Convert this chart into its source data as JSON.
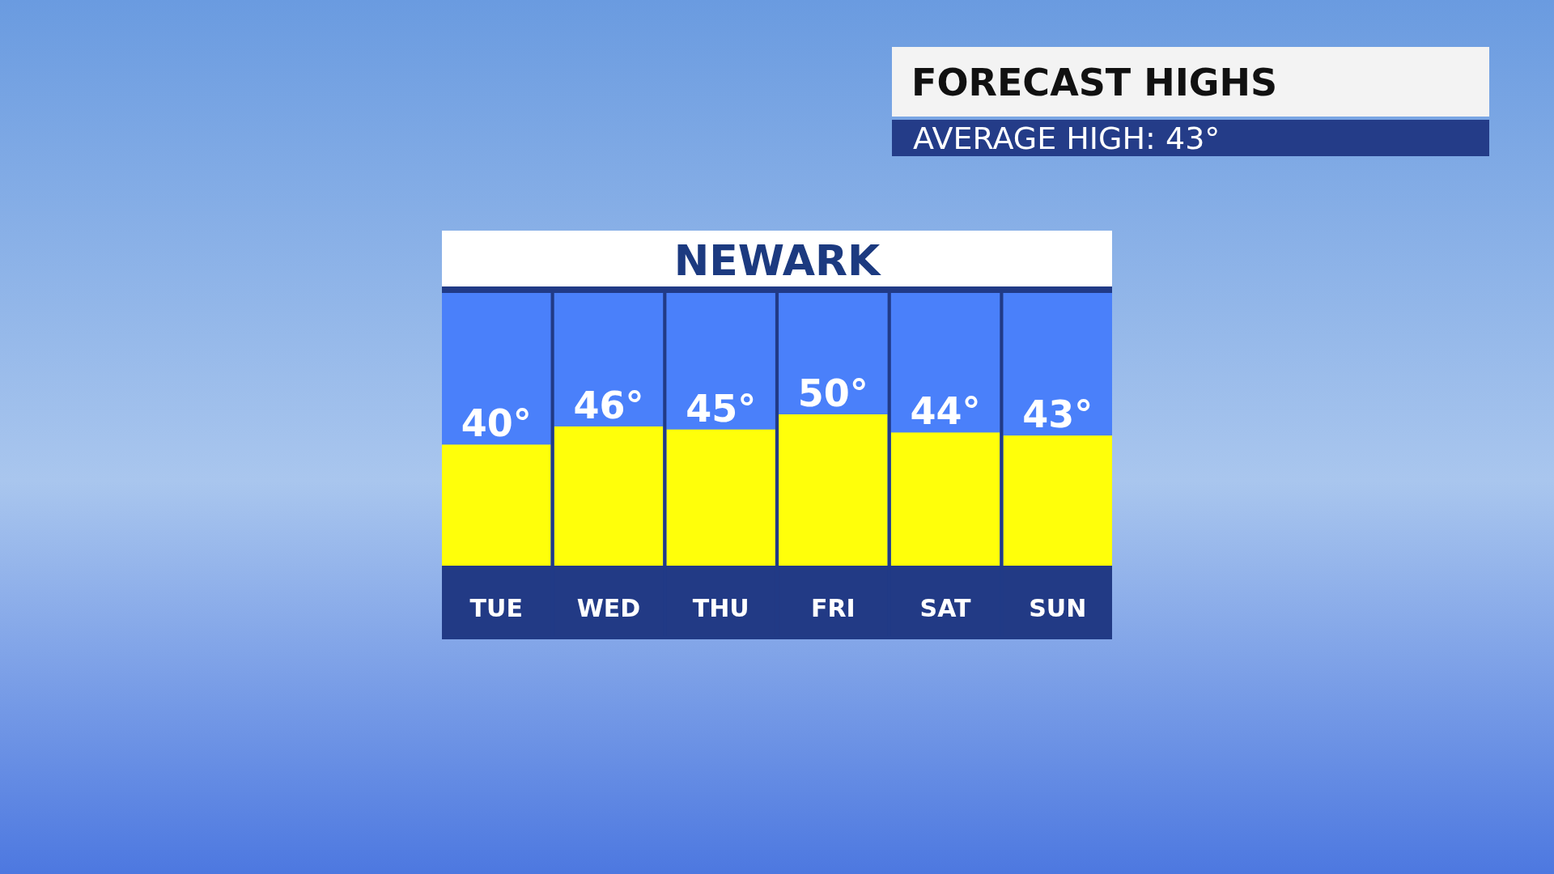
{
  "chart_data": {
    "type": "bar",
    "title": "FORECAST HIGHS",
    "subtitle": "AVERAGE HIGH:  43°",
    "annotations": [
      "NEWARK"
    ],
    "categories": [
      "TUE",
      "WED",
      "THU",
      "FRI",
      "SAT",
      "SUN"
    ],
    "values": [
      40,
      46,
      45,
      50,
      44,
      43
    ],
    "value_labels": [
      "40°",
      "46°",
      "45°",
      "50°",
      "44°",
      "43°"
    ],
    "color": "#ffff0a"
  }
}
